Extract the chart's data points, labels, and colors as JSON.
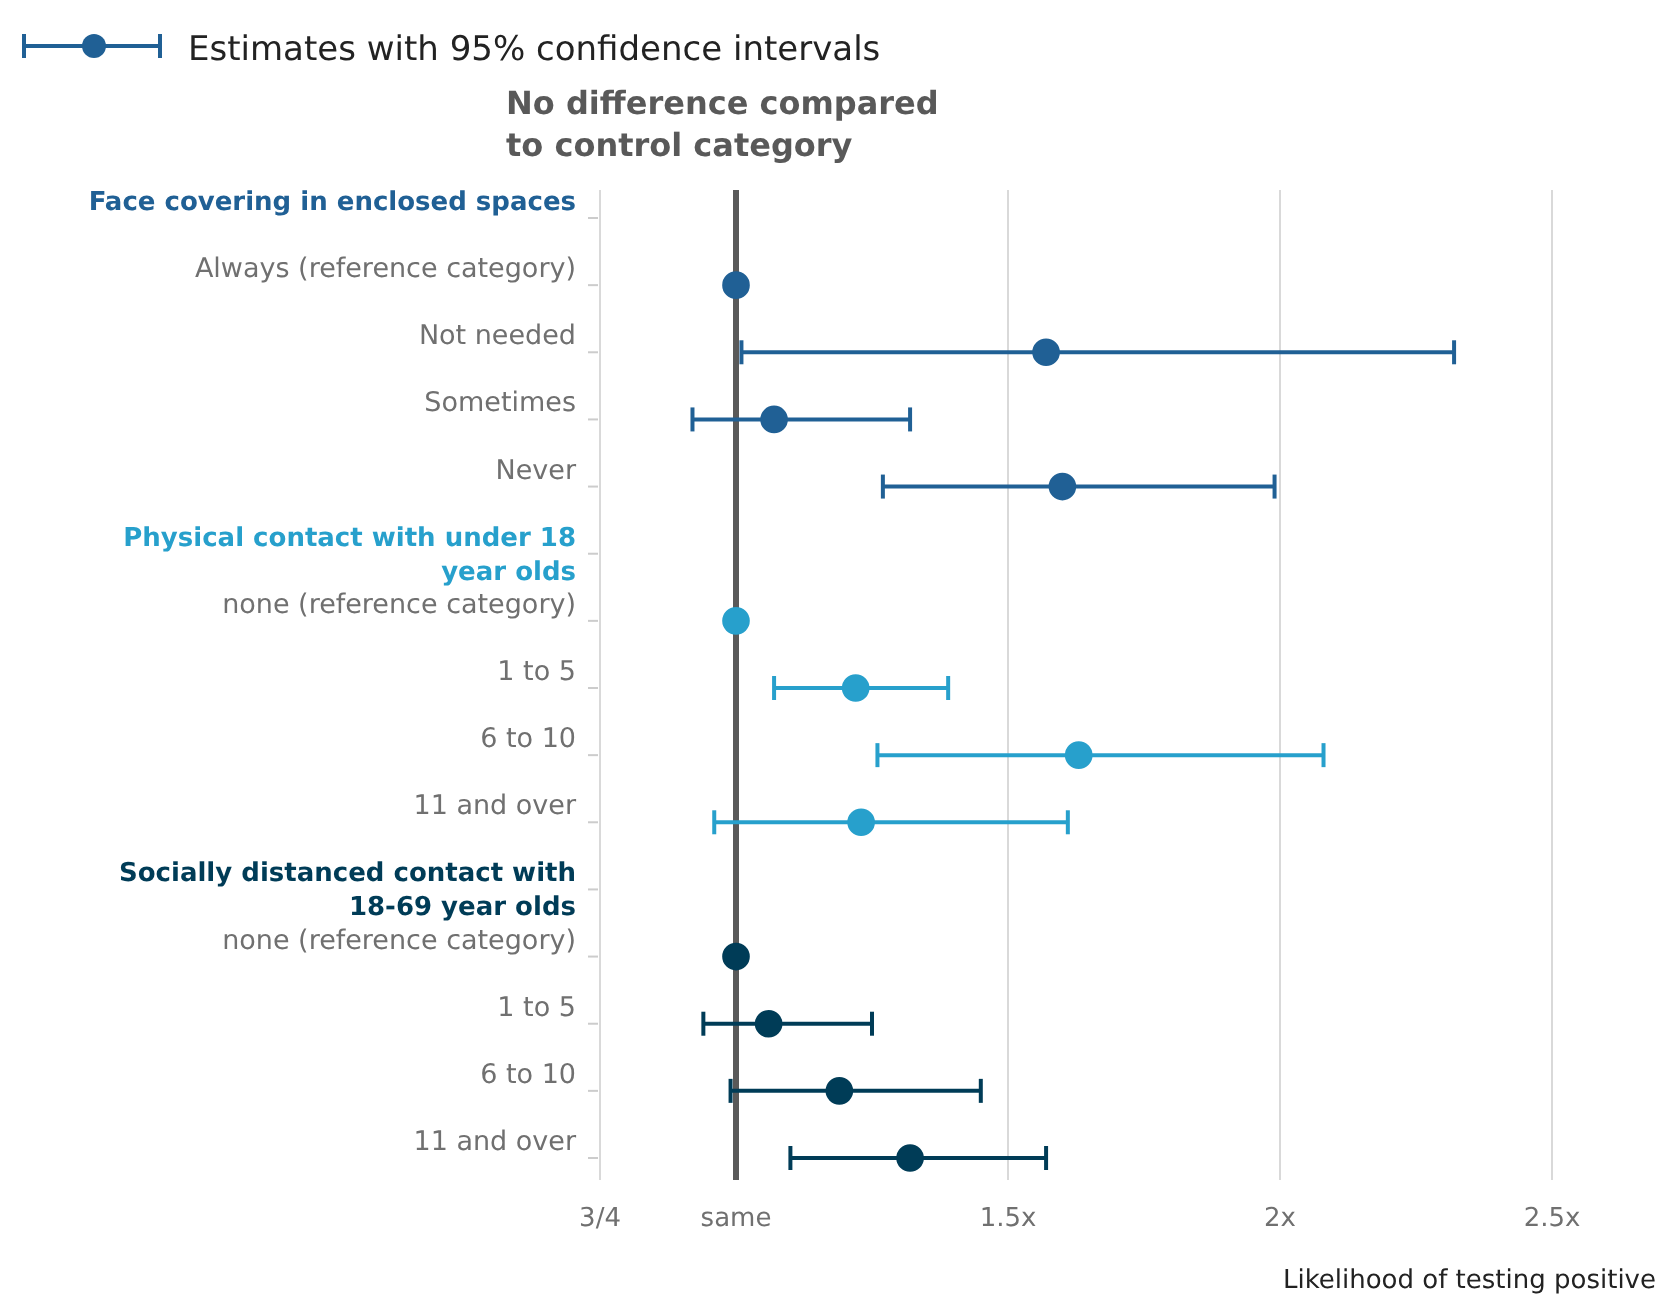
{
  "chart_data": {
    "type": "scatter",
    "orientation": "horizontal",
    "legend_title": "Estimates with 95% confidence intervals",
    "legend": "top left",
    "xlabel": "Likelihood of testing positive",
    "marker": "circle",
    "grid": "x",
    "tick_labels": "xy",
    "categories": [
      "Face covering in enclosed spaces",
      "Always (reference category)",
      "Not needed",
      "Sometimes",
      "Never",
      "Physical contact with under 18 year olds",
      "none (reference category)",
      "1 to 5",
      "6 to 10",
      "11 and over",
      "Socially distanced contact with 18-69 year olds",
      "none (reference category)",
      "1 to 5",
      "6 to 10",
      "11 and over"
    ],
    "xlim": [
      0.75,
      2.5
    ],
    "xticks": [
      {
        "value": 0.75,
        "label": "3/4"
      },
      {
        "value": 1,
        "label": "same"
      },
      {
        "value": 1.5,
        "label": "1.5x"
      },
      {
        "value": 2,
        "label": "2x"
      },
      {
        "value": 2.5,
        "label": "2.5x"
      }
    ],
    "ref_lines": [
      {
        "axis": "x",
        "value": 1,
        "label": "No difference compared to control category",
        "color": "#595959"
      }
    ],
    "series": [
      {
        "color": "#206095",
        "values": [
          null,
          1.0,
          1.57,
          1.07,
          1.6,
          null,
          null,
          null,
          null,
          null,
          null,
          null,
          null,
          null,
          null
        ],
        "errors": [
          null,
          null,
          [
            1.01,
            2.32
          ],
          [
            0.92,
            1.32
          ],
          [
            1.27,
            1.99
          ],
          null,
          null,
          null,
          null,
          null,
          null,
          null,
          null,
          null,
          null
        ]
      },
      {
        "color": "#27a0cc",
        "values": [
          null,
          null,
          null,
          null,
          null,
          null,
          1.0,
          1.22,
          1.63,
          1.23,
          null,
          null,
          null,
          null,
          null
        ],
        "errors": [
          null,
          null,
          null,
          null,
          null,
          null,
          null,
          [
            1.07,
            1.39
          ],
          [
            1.26,
            2.08
          ],
          [
            0.96,
            1.61
          ],
          null,
          null,
          null,
          null,
          null
        ]
      },
      {
        "color": "#003c57",
        "values": [
          null,
          null,
          null,
          null,
          null,
          null,
          null,
          null,
          null,
          null,
          null,
          1.0,
          1.06,
          1.19,
          1.32
        ],
        "errors": [
          null,
          null,
          null,
          null,
          null,
          null,
          null,
          null,
          null,
          null,
          null,
          null,
          [
            0.94,
            1.25
          ],
          [
            0.99,
            1.45
          ],
          [
            1.1,
            1.57
          ]
        ]
      }
    ]
  }
}
